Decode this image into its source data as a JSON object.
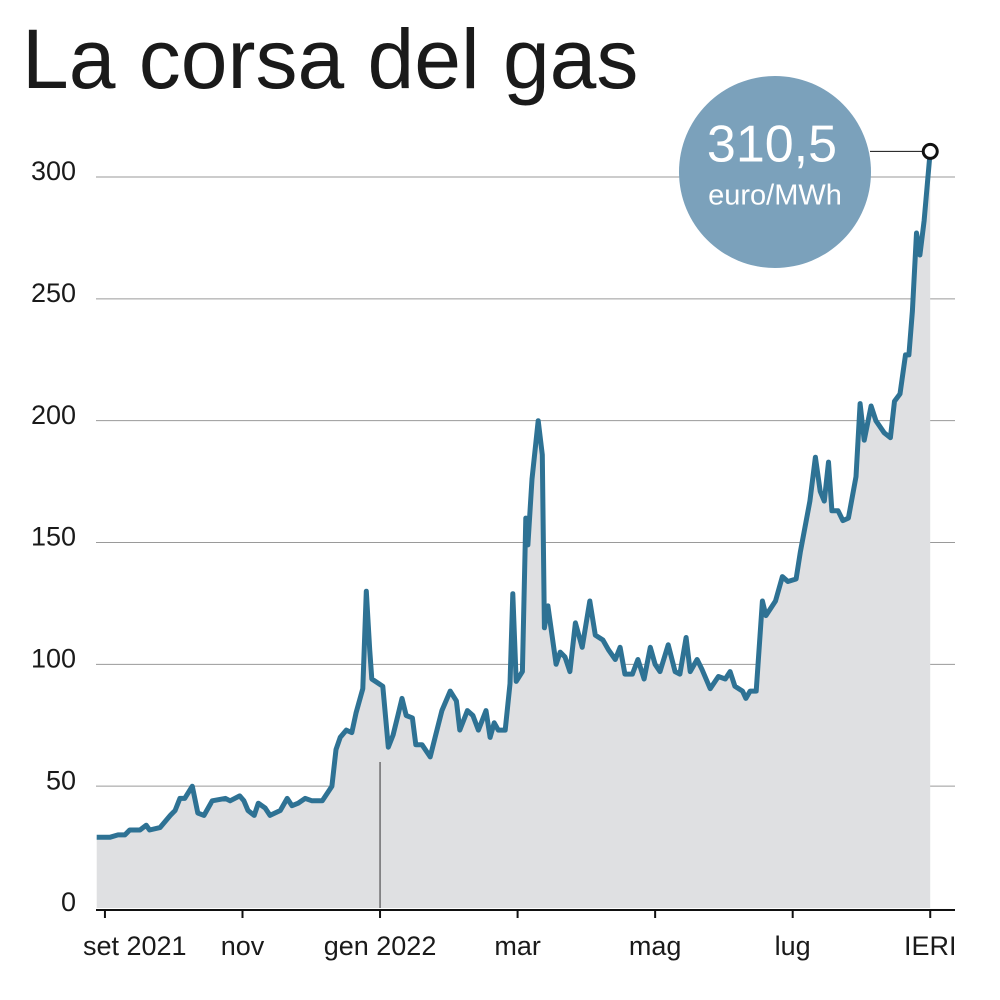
{
  "chart_data": {
    "type": "area",
    "title": "La corsa del gas",
    "color": "#2e7294",
    "fill": "#dfe0e2",
    "grid": true,
    "xlim": [
      -0.13,
      12.36
    ],
    "ylim": [
      0,
      300
    ],
    "yticks": [
      0,
      50,
      100,
      150,
      200,
      250,
      300
    ],
    "xticks": [
      {
        "value": 0,
        "label": "set 2021"
      },
      {
        "value": 2,
        "label": "nov"
      },
      {
        "value": 4,
        "label": "gen 2022"
      },
      {
        "value": 6,
        "label": "mar"
      },
      {
        "value": 8,
        "label": "mag"
      },
      {
        "value": 10,
        "label": "lug"
      },
      {
        "value": 12,
        "label": "IERI"
      }
    ],
    "callout": {
      "value": 310.5,
      "label": "310,5",
      "unit": "euro/MWh"
    },
    "x": [
      -0.12,
      0.07,
      0.19,
      0.29,
      0.36,
      0.51,
      0.6,
      0.65,
      0.8,
      0.95,
      1.02,
      1.09,
      1.16,
      1.27,
      1.35,
      1.44,
      1.56,
      1.75,
      1.82,
      1.96,
      2.02,
      2.08,
      2.17,
      2.23,
      2.33,
      2.4,
      2.55,
      2.65,
      2.72,
      2.81,
      2.91,
      3.01,
      3.16,
      3.3,
      3.36,
      3.42,
      3.51,
      3.59,
      3.65,
      3.75,
      3.8,
      3.85,
      3.88,
      4.04,
      4.12,
      4.19,
      4.26,
      4.32,
      4.38,
      4.47,
      4.52,
      4.61,
      4.73,
      4.81,
      4.9,
      5.02,
      5.11,
      5.16,
      5.27,
      5.35,
      5.43,
      5.54,
      5.6,
      5.66,
      5.72,
      5.82,
      5.89,
      5.93,
      5.98,
      6.07,
      6.12,
      6.15,
      6.21,
      6.3,
      6.36,
      6.39,
      6.44,
      6.56,
      6.62,
      6.69,
      6.76,
      6.84,
      6.94,
      7.05,
      7.13,
      7.24,
      7.32,
      7.42,
      7.49,
      7.56,
      7.67,
      7.75,
      7.84,
      7.93,
      8,
      8.07,
      8.19,
      8.29,
      8.36,
      8.45,
      8.51,
      8.61,
      8.68,
      8.8,
      8.92,
      9.02,
      9.09,
      9.16,
      9.27,
      9.32,
      9.38,
      9.47,
      9.56,
      9.61,
      9.75,
      9.85,
      9.93,
      10.05,
      10.11,
      10.25,
      10.33,
      10.4,
      10.46,
      10.52,
      10.57,
      10.66,
      10.73,
      10.81,
      10.92,
      10.98,
      11.04,
      11.14,
      11.21,
      11.33,
      11.42,
      11.48,
      11.56,
      11.64,
      11.69,
      11.74,
      11.8,
      11.85,
      11.91,
      12
    ],
    "values": [
      29,
      29,
      30,
      30,
      32,
      32,
      34,
      32,
      33,
      38,
      40,
      45,
      45,
      50,
      39,
      38,
      44,
      45,
      44,
      46,
      44,
      40,
      38,
      43,
      41,
      38,
      40,
      45,
      42,
      43,
      45,
      44,
      44,
      50,
      65,
      70,
      73,
      72,
      80,
      90,
      130,
      106,
      94,
      91,
      66,
      71,
      79,
      86,
      79,
      78,
      67,
      67,
      62,
      71,
      81,
      89,
      85,
      73,
      81,
      79,
      73,
      81,
      70,
      76,
      73,
      73,
      92,
      129,
      93,
      97,
      160,
      149,
      176,
      200,
      186,
      115,
      124,
      100,
      105,
      103,
      97,
      117,
      107,
      126,
      112,
      110,
      106,
      102,
      107,
      96,
      96,
      102,
      94,
      107,
      100,
      97,
      108,
      97,
      96,
      111,
      97,
      102,
      98,
      90,
      95,
      94,
      97,
      91,
      89,
      86,
      89,
      89,
      126,
      120,
      126,
      136,
      134,
      135,
      146,
      167,
      185,
      171,
      167,
      183,
      163,
      163,
      159,
      160,
      177,
      207,
      192,
      206,
      200,
      195,
      193,
      208,
      211,
      227,
      227,
      245,
      277,
      268,
      282,
      310.5
    ]
  }
}
